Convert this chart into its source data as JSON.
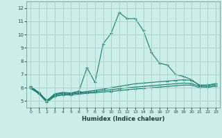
{
  "xlabel": "Humidex (Indice chaleur)",
  "background_color": "#cceee8",
  "line_color": "#1a7a6e",
  "grid_color": "#aacccc",
  "x_values": [
    0,
    1,
    2,
    3,
    4,
    5,
    6,
    7,
    8,
    9,
    10,
    11,
    12,
    13,
    14,
    15,
    16,
    17,
    18,
    19,
    20,
    21,
    22,
    23
  ],
  "series1": [
    6.1,
    5.65,
    5.0,
    5.55,
    5.65,
    5.6,
    5.75,
    7.5,
    6.4,
    9.3,
    10.1,
    11.65,
    11.2,
    11.2,
    10.3,
    8.65,
    7.85,
    7.7,
    7.0,
    6.85,
    6.6,
    6.15,
    6.2,
    6.3
  ],
  "series2": [
    6.05,
    5.65,
    5.05,
    5.5,
    5.6,
    5.58,
    5.65,
    5.72,
    5.8,
    5.9,
    6.0,
    6.1,
    6.2,
    6.3,
    6.35,
    6.4,
    6.45,
    6.5,
    6.55,
    6.6,
    6.55,
    6.2,
    6.2,
    6.3
  ],
  "series3": [
    6.0,
    5.6,
    4.98,
    5.42,
    5.52,
    5.52,
    5.6,
    5.65,
    5.7,
    5.78,
    5.85,
    5.92,
    6.0,
    6.05,
    6.1,
    6.15,
    6.2,
    6.25,
    6.3,
    6.35,
    6.32,
    6.1,
    6.1,
    6.2
  ],
  "series4": [
    5.95,
    5.55,
    4.9,
    5.35,
    5.45,
    5.45,
    5.52,
    5.58,
    5.62,
    5.68,
    5.72,
    5.78,
    5.85,
    5.9,
    5.95,
    6.0,
    6.05,
    6.1,
    6.15,
    6.2,
    6.2,
    6.0,
    6.02,
    6.12
  ],
  "ylim": [
    4.5,
    12.5
  ],
  "yticks": [
    5,
    6,
    7,
    8,
    9,
    10,
    11,
    12
  ],
  "xticks": [
    0,
    1,
    2,
    3,
    4,
    5,
    6,
    7,
    8,
    9,
    10,
    11,
    12,
    13,
    14,
    15,
    16,
    17,
    18,
    19,
    20,
    21,
    22,
    23
  ],
  "marker": "+",
  "marker_size": 3,
  "linewidth": 0.8
}
